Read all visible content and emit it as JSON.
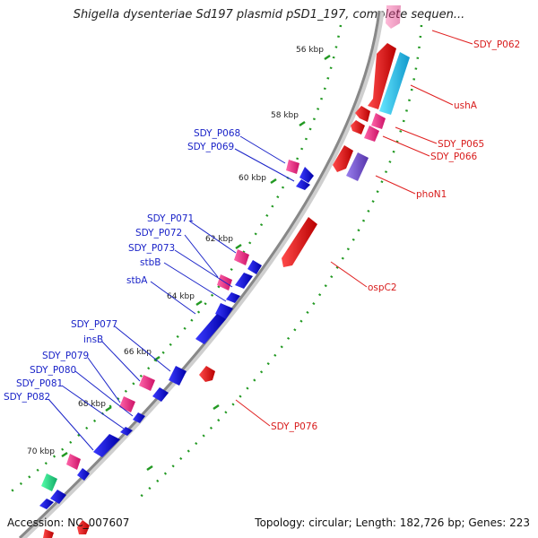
{
  "header": {
    "title": "Shigella dysenteriae Sd197 plasmid pSD1_197, complete sequen..."
  },
  "footer": {
    "accession": "Accession: NC_007607",
    "summary": "Topology: circular; Length: 182,726 bp; Genes: 223"
  },
  "colors": {
    "forward_cds": "#ee1111",
    "reverse_cds": "#1111dd",
    "pseudo_red": "#ff3388",
    "cyan_feature": "#22ccee",
    "purple_feature": "#7755cc",
    "green_feature": "#22dd88",
    "backbone": "#888888",
    "dots": "#229922"
  },
  "ticks": [
    "56 kbp",
    "58 kbp",
    "60 kbp",
    "62 kbp",
    "64 kbp",
    "66 kbp",
    "68 kbp",
    "70 kbp"
  ],
  "labels": {
    "forward": [
      "SDY_P062",
      "ushA",
      "SDY_P065",
      "SDY_P066",
      "phoN1",
      "ospC2",
      "SDY_P076"
    ],
    "reverse": [
      "SDY_P068",
      "SDY_P069",
      "SDY_P071",
      "SDY_P072",
      "SDY_P073",
      "stbB",
      "stbA",
      "SDY_P077",
      "insB",
      "SDY_P079",
      "SDY_P080",
      "SDY_P081",
      "SDY_P082"
    ]
  }
}
